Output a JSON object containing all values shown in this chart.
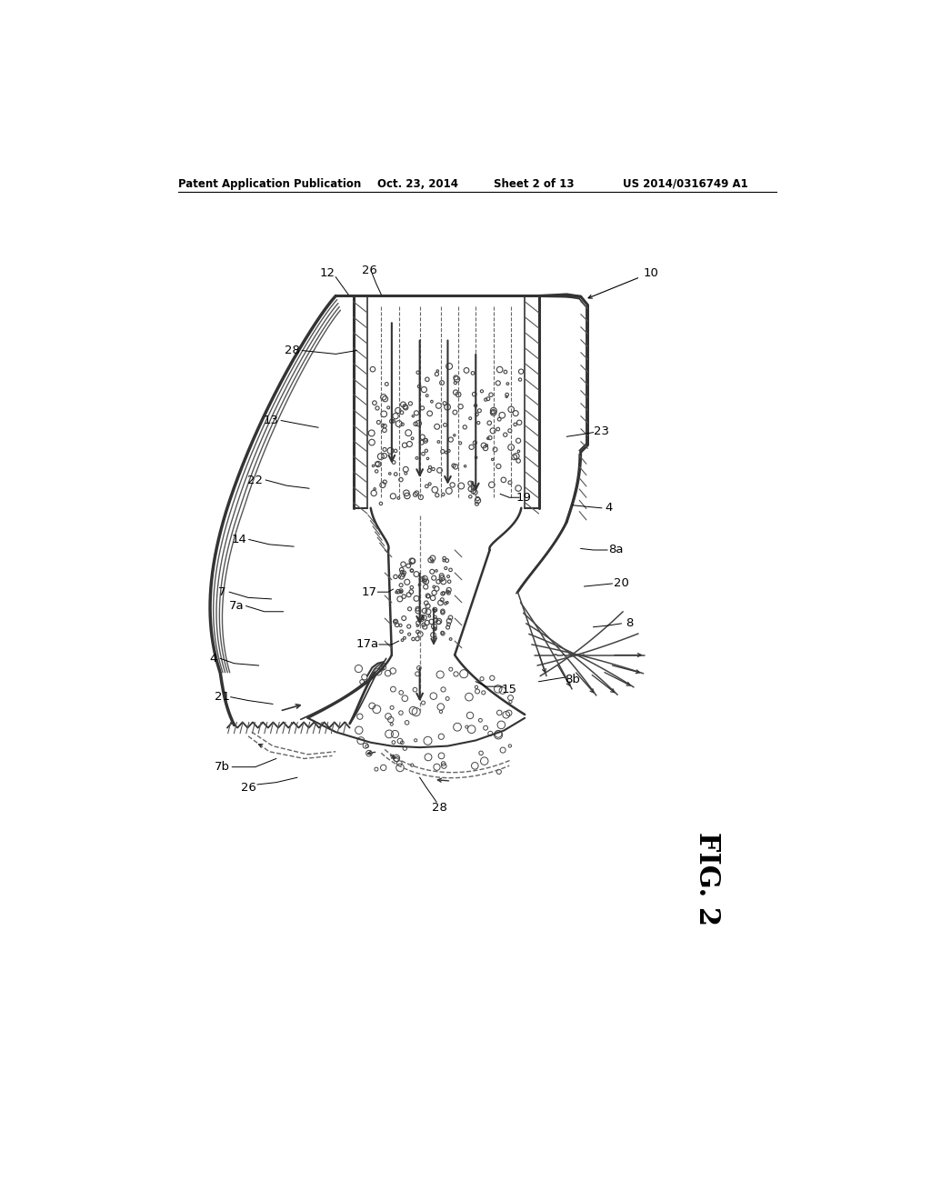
{
  "bg_color": "#ffffff",
  "header_text": "Patent Application Publication",
  "header_date": "Oct. 23, 2014",
  "header_sheet": "Sheet 2 of 13",
  "header_patent": "US 2014/0316749 A1",
  "fig_label": "FIG. 2",
  "line_color": "#333333",
  "hatch_color": "#555555"
}
